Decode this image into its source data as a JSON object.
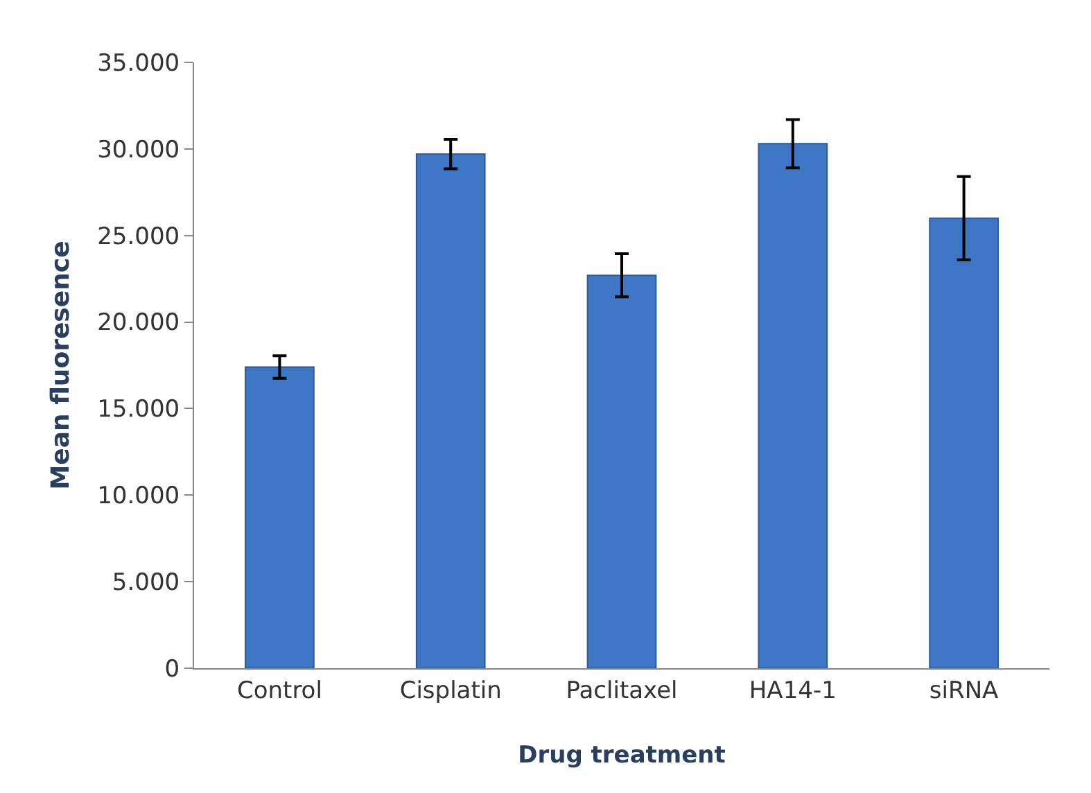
{
  "chart_data": {
    "type": "bar",
    "xlabel": "Drug treatment",
    "ylabel": "Mean fluoresence",
    "categories": [
      "Control",
      "Cisplatin",
      "Paclitaxel",
      "HA14-1",
      "siRNA"
    ],
    "values": [
      17400,
      29700,
      22700,
      30300,
      26000
    ],
    "errors": [
      650,
      850,
      1250,
      1400,
      2400
    ],
    "color": "#3d76c4",
    "ylim": [
      0,
      35000
    ],
    "yticks": [
      0,
      {
        "value": 5000,
        "label": "5.000"
      },
      {
        "value": 10000,
        "label": "10.000"
      },
      {
        "value": 15000,
        "label": "15.000"
      },
      {
        "value": 20000,
        "label": "20.000"
      },
      {
        "value": 25000,
        "label": "25.000"
      },
      {
        "value": 30000,
        "label": "30.000"
      },
      {
        "value": 35000,
        "label": "35.000"
      }
    ]
  }
}
